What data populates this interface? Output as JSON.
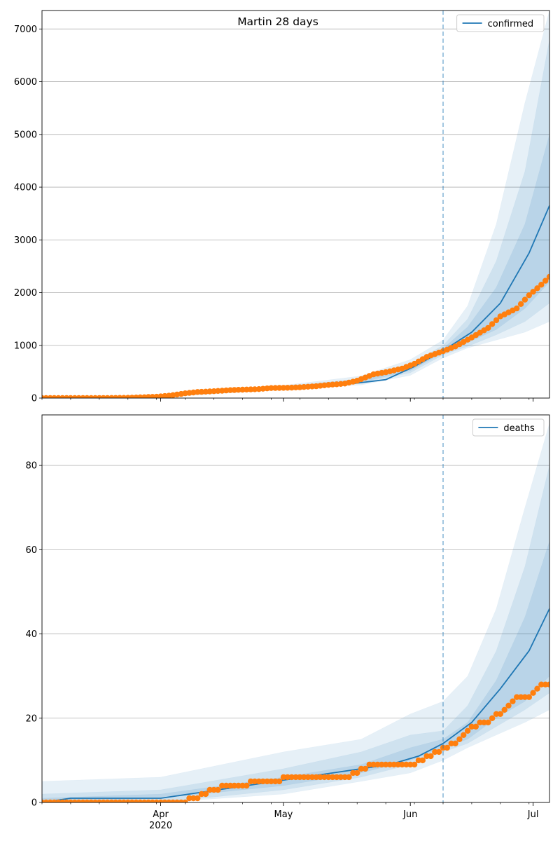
{
  "figure": {
    "title": "Martin 28 days"
  },
  "colors": {
    "forecast": "#1f77b4",
    "observed": "#ff7f0e",
    "band": "#1f77b4",
    "grid": "#b0b0b0",
    "divider": "#1f77b4"
  },
  "chart_data": [
    {
      "type": "line",
      "name": "confirmed",
      "legend": [
        "confirmed"
      ],
      "legend_position": "top-right",
      "title": "Martin 28 days",
      "grid": true,
      "x_start": "2020-03-03",
      "x_end": "2020-07-05",
      "xlim": [
        "2020-03-03",
        "2020-07-05"
      ],
      "ylim": [
        0,
        7350
      ],
      "yticks": [
        0,
        1000,
        2000,
        3000,
        4000,
        5000,
        6000,
        7000
      ],
      "xtick_labels": [
        "Apr\n2020",
        "May",
        "Jun",
        "Jul"
      ],
      "forecast_start": "2020-06-09",
      "series": [
        {
          "name": "confirmed",
          "style": "line",
          "x": [
            "2020-03-03",
            "2020-03-10",
            "2020-03-17",
            "2020-03-24",
            "2020-03-31",
            "2020-04-07",
            "2020-04-14",
            "2020-04-21",
            "2020-04-28",
            "2020-05-05",
            "2020-05-12",
            "2020-05-19",
            "2020-05-26",
            "2020-06-02",
            "2020-06-09",
            "2020-06-16",
            "2020-06-23",
            "2020-06-30",
            "2020-07-05"
          ],
          "y": [
            0,
            1,
            2,
            10,
            35,
            70,
            120,
            150,
            175,
            205,
            240,
            285,
            350,
            600,
            900,
            1250,
            1800,
            2750,
            3650
          ]
        },
        {
          "name": "observed",
          "style": "points",
          "x": [
            "2020-03-03",
            "2020-03-10",
            "2020-03-17",
            "2020-03-24",
            "2020-03-31",
            "2020-04-03",
            "2020-04-07",
            "2020-04-10",
            "2020-04-14",
            "2020-04-18",
            "2020-04-21",
            "2020-04-25",
            "2020-04-28",
            "2020-05-02",
            "2020-05-05",
            "2020-05-09",
            "2020-05-12",
            "2020-05-16",
            "2020-05-19",
            "2020-05-23",
            "2020-05-26",
            "2020-05-30",
            "2020-06-02",
            "2020-06-05",
            "2020-06-09",
            "2020-06-12",
            "2020-06-16",
            "2020-06-20",
            "2020-06-23",
            "2020-06-27",
            "2020-06-30",
            "2020-07-03",
            "2020-07-05"
          ],
          "y": [
            0,
            0,
            0,
            5,
            25,
            45,
            90,
            115,
            130,
            150,
            160,
            170,
            190,
            195,
            205,
            225,
            250,
            275,
            330,
            450,
            490,
            560,
            650,
            780,
            890,
            980,
            1150,
            1330,
            1550,
            1700,
            1950,
            2150,
            2300
          ]
        }
      ],
      "bands": {
        "x": [
          "2020-03-03",
          "2020-04-01",
          "2020-05-01",
          "2020-05-20",
          "2020-06-01",
          "2020-06-09",
          "2020-06-15",
          "2020-06-22",
          "2020-06-29",
          "2020-07-05"
        ],
        "median": [
          0,
          30,
          200,
          320,
          560,
          900,
          1200,
          1700,
          2500,
          3650
        ],
        "inner": {
          "lo": [
            0,
            25,
            190,
            300,
            520,
            860,
            1050,
            1300,
            1700,
            2200
          ],
          "hi": [
            0,
            35,
            210,
            340,
            600,
            940,
            1350,
            2100,
            3300,
            5000
          ]
        },
        "middle": {
          "lo": [
            0,
            20,
            180,
            280,
            480,
            820,
            980,
            1200,
            1450,
            1800
          ],
          "hi": [
            0,
            40,
            220,
            370,
            650,
            1000,
            1500,
            2600,
            4300,
            6800
          ]
        },
        "outer": {
          "lo": [
            0,
            15,
            160,
            250,
            430,
            760,
            950,
            1100,
            1250,
            1450
          ],
          "hi": [
            5,
            50,
            240,
            420,
            730,
            1100,
            1750,
            3300,
            5600,
            7350
          ]
        }
      }
    },
    {
      "type": "line",
      "name": "deaths",
      "legend": [
        "deaths"
      ],
      "legend_position": "top-right",
      "grid": true,
      "x_start": "2020-03-03",
      "x_end": "2020-07-05",
      "xlim": [
        "2020-03-03",
        "2020-07-05"
      ],
      "ylim": [
        0,
        92
      ],
      "yticks": [
        0,
        20,
        40,
        60,
        80
      ],
      "xtick_labels": [
        "Apr\n2020",
        "May",
        "Jun",
        "Jul"
      ],
      "forecast_start": "2020-06-09",
      "series": [
        {
          "name": "deaths",
          "style": "line",
          "x": [
            "2020-03-03",
            "2020-03-10",
            "2020-04-01",
            "2020-04-08",
            "2020-04-15",
            "2020-04-22",
            "2020-04-29",
            "2020-05-06",
            "2020-05-13",
            "2020-05-20",
            "2020-05-27",
            "2020-06-03",
            "2020-06-09",
            "2020-06-16",
            "2020-06-23",
            "2020-06-30",
            "2020-07-05"
          ],
          "y": [
            0,
            1,
            1,
            2,
            3,
            4,
            5,
            6,
            7,
            8,
            9,
            11,
            14,
            19,
            27,
            36,
            46
          ]
        },
        {
          "name": "observed",
          "style": "points",
          "x": [
            "2020-03-03",
            "2020-03-15",
            "2020-03-30",
            "2020-04-06",
            "2020-04-10",
            "2020-04-14",
            "2020-04-18",
            "2020-04-21",
            "2020-04-25",
            "2020-04-28",
            "2020-05-03",
            "2020-05-08",
            "2020-05-13",
            "2020-05-17",
            "2020-05-20",
            "2020-05-24",
            "2020-05-28",
            "2020-06-01",
            "2020-06-04",
            "2020-06-07",
            "2020-06-10",
            "2020-06-13",
            "2020-06-16",
            "2020-06-20",
            "2020-06-24",
            "2020-06-27",
            "2020-06-30",
            "2020-07-03",
            "2020-07-05"
          ],
          "y": [
            0,
            0,
            0,
            0,
            1,
            3,
            4,
            4,
            5,
            5,
            6,
            6,
            6,
            6,
            8,
            9,
            9,
            9,
            10,
            12,
            13,
            15,
            18,
            19,
            22,
            25,
            25,
            28,
            28
          ]
        }
      ],
      "bands": {
        "x": [
          "2020-03-03",
          "2020-04-01",
          "2020-05-01",
          "2020-05-20",
          "2020-06-01",
          "2020-06-09",
          "2020-06-15",
          "2020-06-22",
          "2020-06-29",
          "2020-07-05"
        ],
        "median": [
          0,
          1,
          5,
          8,
          11,
          14,
          17,
          24,
          34,
          46
        ],
        "inner": {
          "lo": [
            0,
            1,
            4,
            7,
            10,
            13,
            15,
            20,
            24,
            30
          ],
          "hi": [
            1,
            2,
            6,
            9,
            13,
            15,
            19,
            29,
            44,
            62
          ]
        },
        "middle": {
          "lo": [
            0,
            0,
            3,
            6,
            9,
            12,
            14,
            18,
            22,
            26
          ],
          "hi": [
            2,
            3,
            8,
            12,
            16,
            17,
            23,
            36,
            56,
            80
          ]
        },
        "outer": {
          "lo": [
            0,
            0,
            2,
            5,
            7,
            10,
            13,
            16,
            19,
            22
          ],
          "hi": [
            5,
            6,
            12,
            15,
            21,
            24,
            30,
            46,
            70,
            90
          ]
        }
      }
    }
  ]
}
